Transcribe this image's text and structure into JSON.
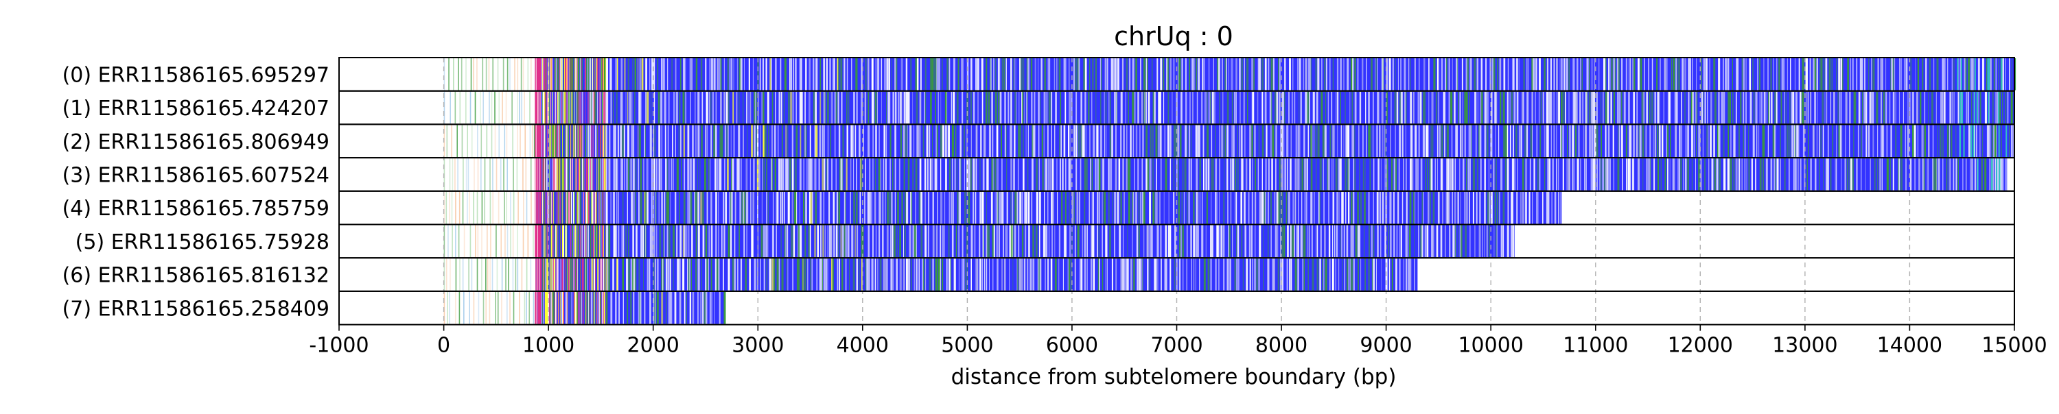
{
  "chart_data": {
    "type": "heatmap",
    "title": "chrUq : 0",
    "xlabel": "distance from subtelomere boundary (bp)",
    "ylabel": "",
    "xlim": [
      -1000,
      15000
    ],
    "xticks": [
      -1000,
      0,
      1000,
      2000,
      3000,
      4000,
      5000,
      6000,
      7000,
      8000,
      9000,
      10000,
      11000,
      12000,
      13000,
      14000,
      15000
    ],
    "grid": "vertical dashed",
    "colors": {
      "methylated": "#3333ff",
      "unmethylated": "#ffffff",
      "green": "#3a9a3a",
      "yellow": "#ffff33",
      "magenta": "#e0308a",
      "cyan": "#30c0c0",
      "faint_green": "#a9d9a9",
      "faint_orange": "#f7c59f",
      "faint_blue": "#9ac6e8"
    },
    "rows": [
      {
        "label": "(0) ERR11586165.695297",
        "read_end": 15000
      },
      {
        "label": "(1) ERR11586165.424207",
        "read_end": 15000
      },
      {
        "label": "(2) ERR11586165.806949",
        "read_end": 14990
      },
      {
        "label": "(3) ERR11586165.607524",
        "read_end": 14930
      },
      {
        "label": "(4) ERR11586165.785759",
        "read_end": 10680
      },
      {
        "label": "(5) ERR11586165.75928",
        "read_end": 10230
      },
      {
        "label": "(6) ERR11586165.816132",
        "read_end": 9300
      },
      {
        "label": "(7) ERR11586165.258409",
        "read_end": 2680
      }
    ],
    "segments": {
      "sparse_start": 0,
      "dense_start": 870,
      "methylated_start": 1550
    }
  }
}
